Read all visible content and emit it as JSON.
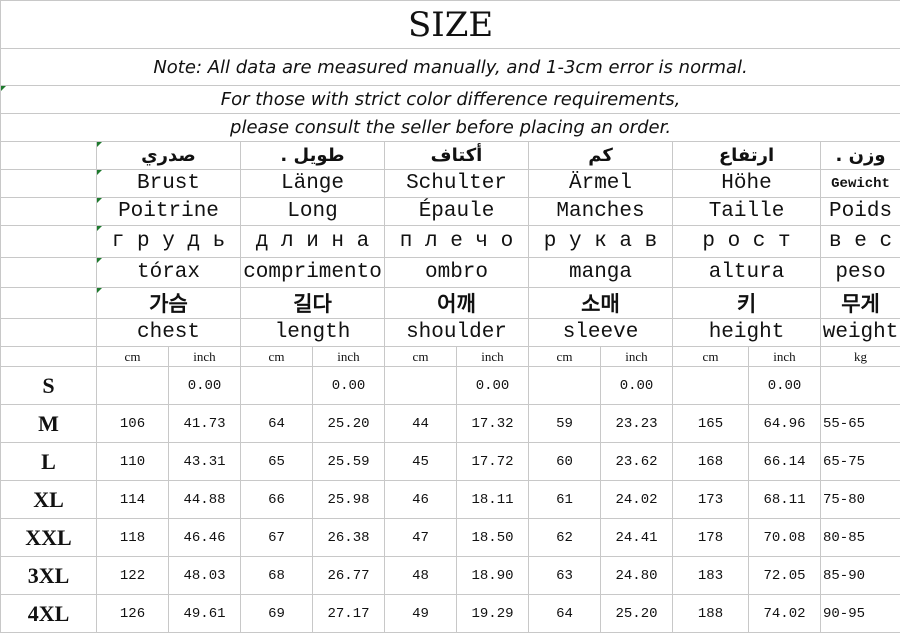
{
  "title": "SIZE",
  "notes": [
    "Note: All data are measured manually, and 1-3cm error is normal.",
    "For those with strict color difference requirements,",
    "please consult the seller before placing an order."
  ],
  "header_rows": [
    {
      "lang": "arabic",
      "labels": [
        "صدري",
        ". طويل",
        "أكتاف",
        "كم",
        "ارتفاع",
        ". وزن"
      ]
    },
    {
      "lang": "german",
      "labels": [
        "Brust",
        "Länge",
        "Schulter",
        "Ärmel",
        "Höhe",
        "Gewicht"
      ]
    },
    {
      "lang": "french",
      "labels": [
        "Poitrine",
        "Long",
        "Épaule",
        "Manches",
        "Taille",
        "Poids"
      ]
    },
    {
      "lang": "russian",
      "labels": [
        "г р у д ь",
        "д л и н а",
        "п л е ч о",
        "р у к а в",
        "р о с т",
        "в е с"
      ]
    },
    {
      "lang": "spanish",
      "labels": [
        "tórax",
        "comprimento",
        "ombro",
        "manga",
        "altura",
        "peso"
      ]
    },
    {
      "lang": "korean",
      "labels": [
        "가슴",
        "길다",
        "어깨",
        "소매",
        "키",
        "무게"
      ]
    },
    {
      "lang": "english",
      "labels": [
        "chest",
        "length",
        "shoulder",
        "sleeve",
        "height",
        "weight"
      ]
    }
  ],
  "units": [
    "cm",
    "inch",
    "cm",
    "inch",
    "cm",
    "inch",
    "cm",
    "inch",
    "cm",
    "inch",
    "kg"
  ],
  "rows": [
    {
      "size": "S",
      "values": [
        "",
        "0.00",
        "",
        "0.00",
        "",
        "0.00",
        "",
        "0.00",
        "",
        "0.00",
        ""
      ]
    },
    {
      "size": "M",
      "values": [
        "106",
        "41.73",
        "64",
        "25.20",
        "44",
        "17.32",
        "59",
        "23.23",
        "165",
        "64.96",
        "55-65"
      ]
    },
    {
      "size": "L",
      "values": [
        "110",
        "43.31",
        "65",
        "25.59",
        "45",
        "17.72",
        "60",
        "23.62",
        "168",
        "66.14",
        "65-75"
      ]
    },
    {
      "size": "XL",
      "values": [
        "114",
        "44.88",
        "66",
        "25.98",
        "46",
        "18.11",
        "61",
        "24.02",
        "173",
        "68.11",
        "75-80"
      ]
    },
    {
      "size": "XXL",
      "values": [
        "118",
        "46.46",
        "67",
        "26.38",
        "47",
        "18.50",
        "62",
        "24.41",
        "178",
        "70.08",
        "80-85"
      ]
    },
    {
      "size": "3XL",
      "values": [
        "122",
        "48.03",
        "68",
        "26.77",
        "48",
        "18.90",
        "63",
        "24.80",
        "183",
        "72.05",
        "85-90"
      ]
    },
    {
      "size": "4XL",
      "values": [
        "126",
        "49.61",
        "69",
        "27.17",
        "49",
        "19.29",
        "64",
        "25.20",
        "188",
        "74.02",
        "90-95"
      ]
    }
  ]
}
